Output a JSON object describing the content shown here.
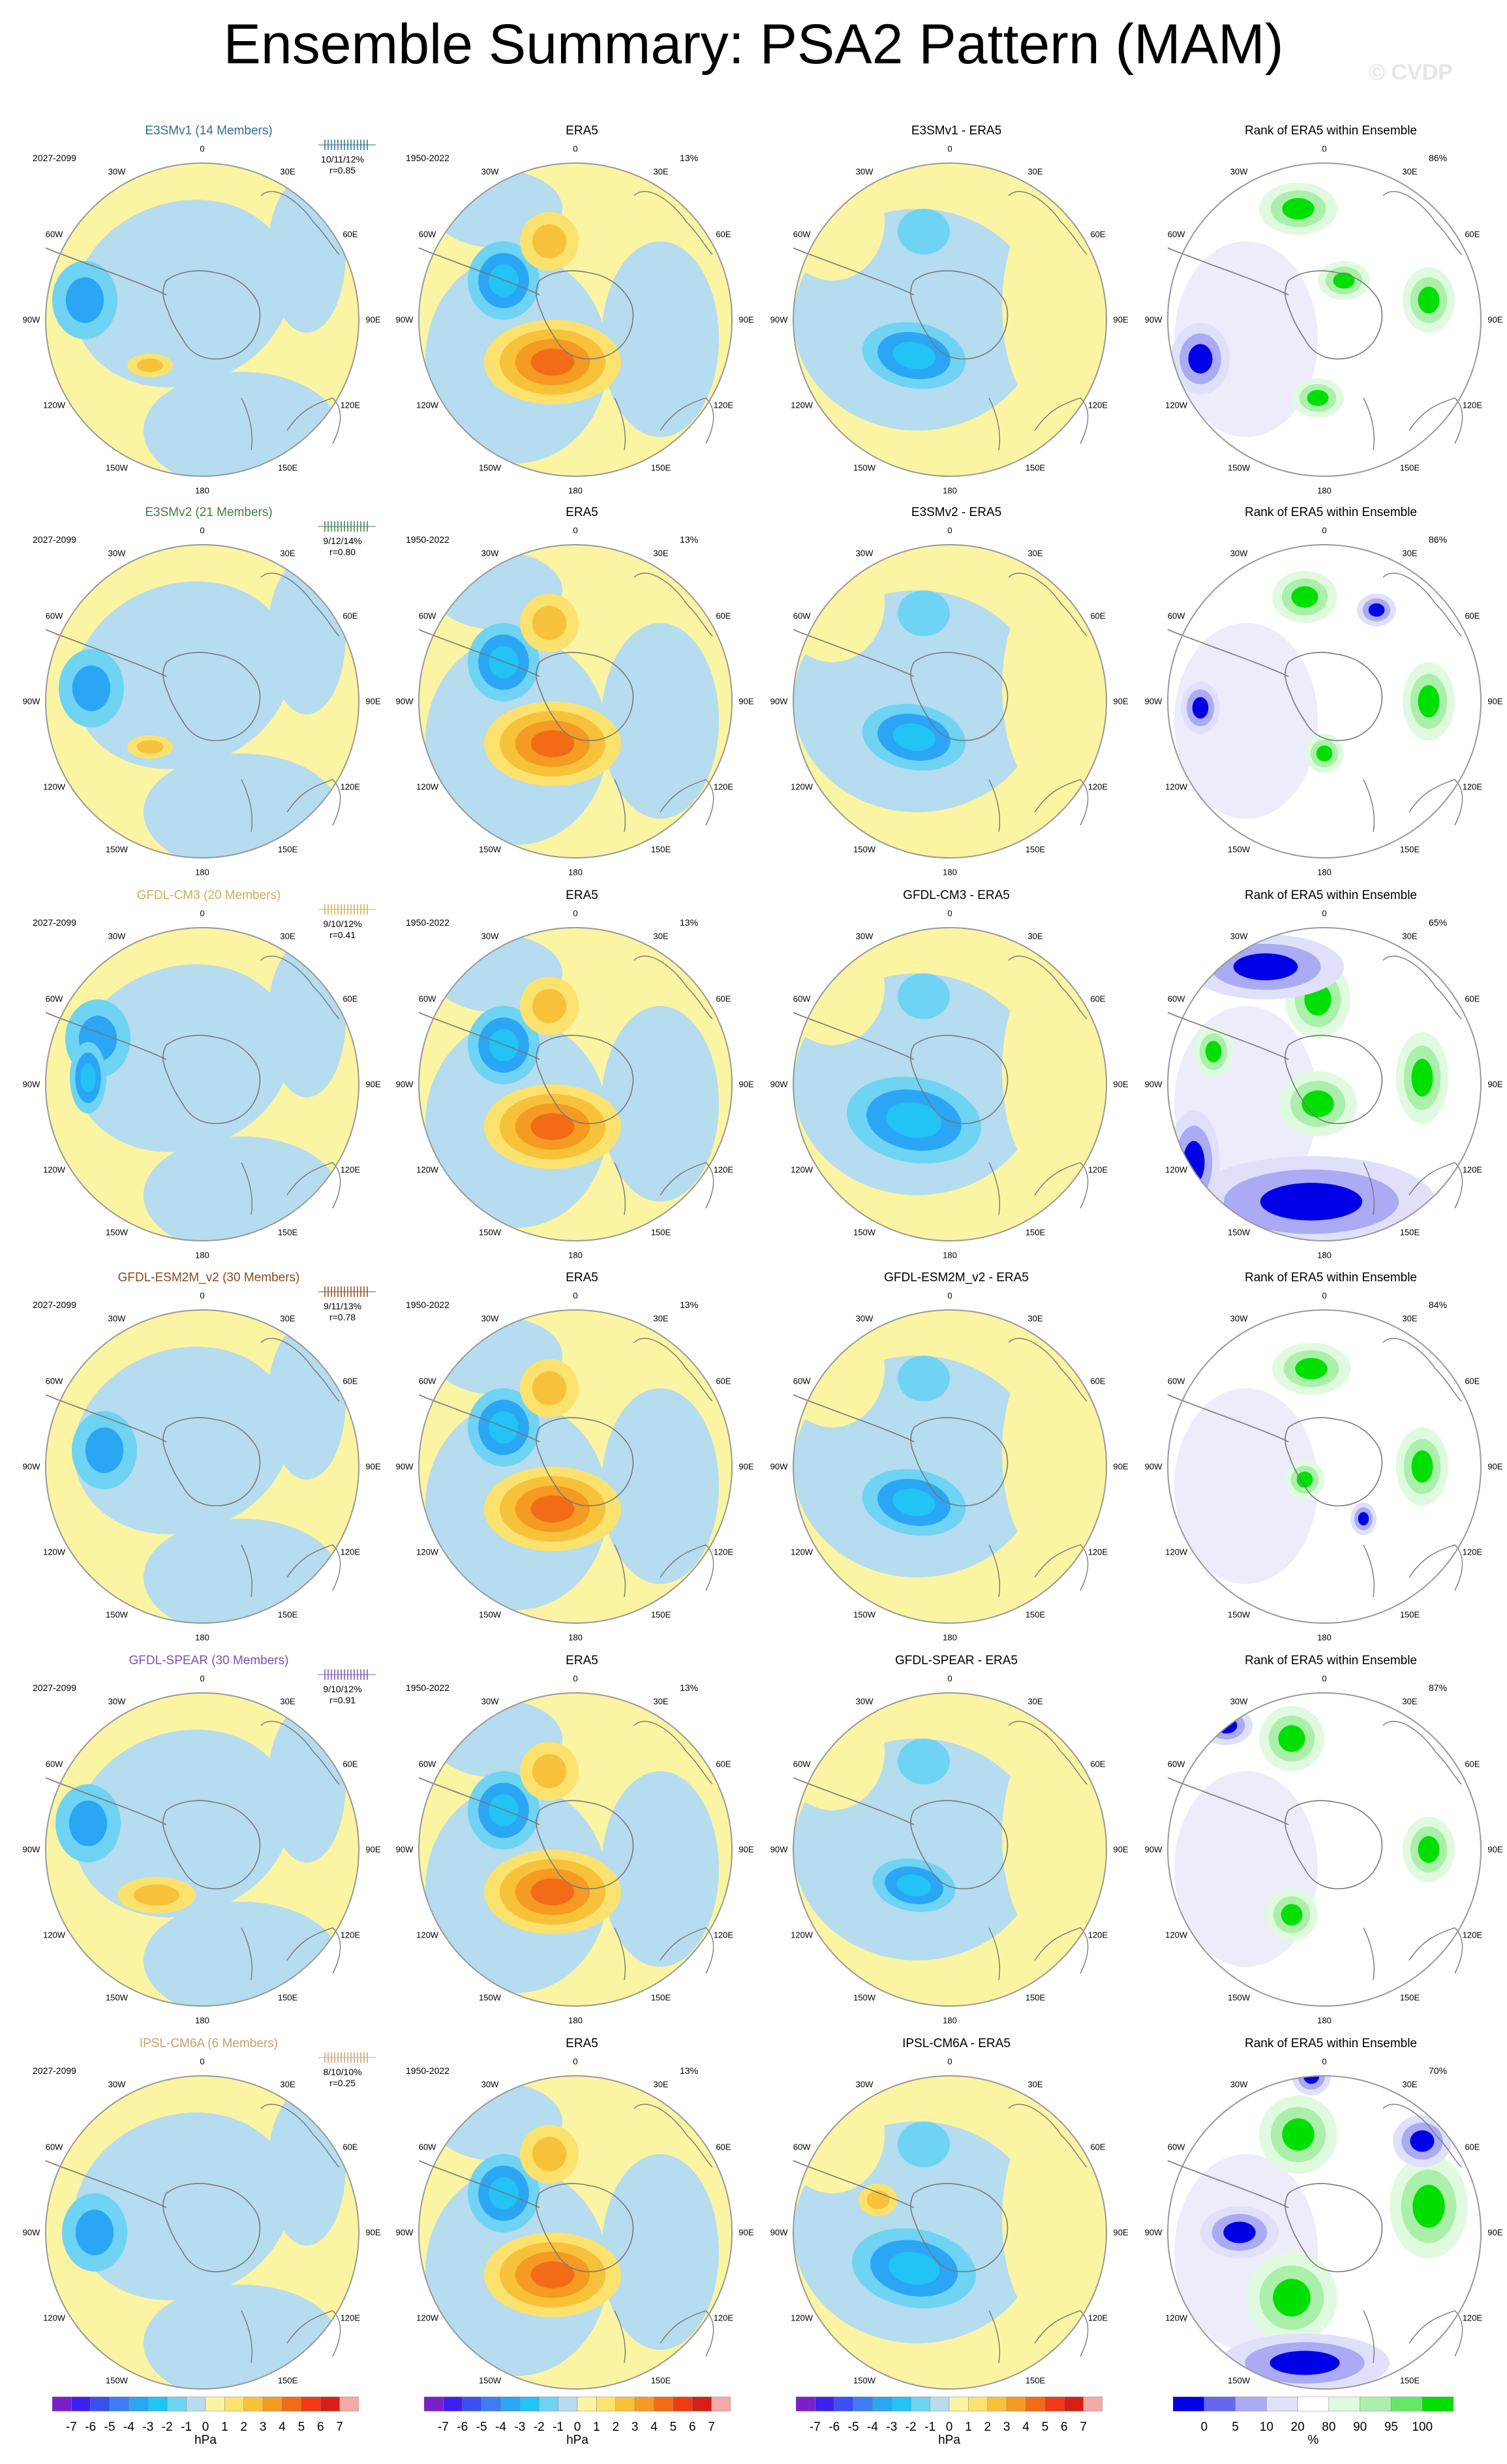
{
  "header": {
    "title": "Ensemble Summary: PSA2 Pattern (MAM)",
    "watermark": "© CVDP"
  },
  "rows": [
    {
      "model": "E3SMv1 (14 Members)",
      "model_color": "#2b6f8f",
      "model_short": "E3SMv1",
      "stats": "10/11/12%",
      "r": "r=0.85",
      "rank_pct": "86%"
    },
    {
      "model": "E3SMv2 (21 Members)",
      "model_color": "#3d7a4e",
      "model_short": "E3SMv2",
      "stats": "9/12/14%",
      "r": "r=0.80",
      "rank_pct": "86%"
    },
    {
      "model": "GFDL-CM3 (20 Members)",
      "model_color": "#c8b05a",
      "model_short": "GFDL-CM3",
      "stats": "9/10/12%",
      "r": "r=0.41",
      "rank_pct": "65%"
    },
    {
      "model": "GFDL-ESM2M_v2 (30 Members)",
      "model_color": "#8a4a1e",
      "model_short": "GFDL-ESM2M_v2",
      "stats": "9/11/13%",
      "r": "r=0.78",
      "rank_pct": "84%"
    },
    {
      "model": "GFDL-SPEAR (30 Members)",
      "model_color": "#7a4fc0",
      "model_short": "GFDL-SPEAR",
      "stats": "9/10/12%",
      "r": "r=0.91",
      "rank_pct": "87%"
    },
    {
      "model": "IPSL-CM6A (6 Members)",
      "model_color": "#c8a070",
      "model_short": "IPSL-CM6A",
      "stats": "8/10/10%",
      "r": "r=0.25",
      "rank_pct": "70%"
    }
  ],
  "common": {
    "model_period": "2027-2099",
    "obs_title": "ERA5",
    "obs_period": "1950-2022",
    "obs_pct": "13%",
    "diff_suffix": " - ERA5",
    "rank_title": "Rank of ERA5 within Ensemble"
  },
  "longitude_labels": {
    "top": "0",
    "bottom": "180",
    "upper_left": "30W",
    "upper_right": "30E",
    "mid_upper_left": "60W",
    "mid_upper_right": "60E",
    "left": "90W",
    "right": "90E",
    "mid_lower_left": "120W",
    "mid_lower_right": "120E",
    "lower_left": "150W",
    "lower_right": "150E"
  },
  "colorbars": {
    "hpa": {
      "ticks": [
        "-7",
        "-6",
        "-5",
        "-4",
        "-3",
        "-2",
        "-1",
        "0",
        "1",
        "2",
        "3",
        "4",
        "5",
        "6",
        "7"
      ],
      "units": "hPa",
      "colors": [
        "#7b1fc9",
        "#3f1ff0",
        "#3a50f2",
        "#3f7cf3",
        "#2aa6f5",
        "#22c3f5",
        "#6fd3f3",
        "#b5dcef",
        "#fbf4a3",
        "#fbe26f",
        "#f7c23a",
        "#f59a23",
        "#f36b16",
        "#f03a15",
        "#d91d17",
        "#f5a9a6"
      ]
    },
    "rank": {
      "ticks": [
        "0",
        "5",
        "10",
        "20",
        "80",
        "90",
        "95",
        "100"
      ],
      "units": "%",
      "colors": [
        "#0000e6",
        "#6666f0",
        "#aaaaf5",
        "#e0e0fa",
        "#ffffff",
        "#e0fae0",
        "#aaf0aa",
        "#66e866",
        "#00e000"
      ]
    }
  }
}
